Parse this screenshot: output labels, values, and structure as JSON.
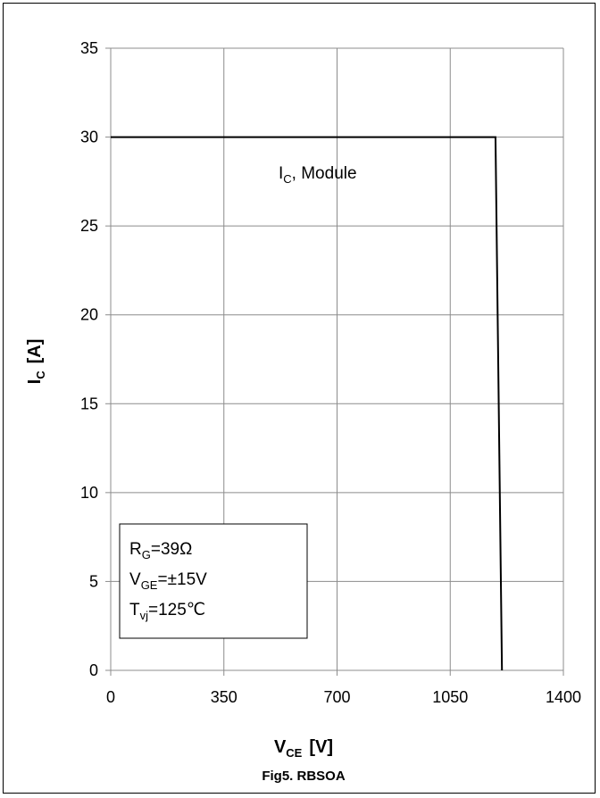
{
  "chart_data": {
    "type": "line",
    "title": "Fig5. RBSOA",
    "xlabel": {
      "main": "V",
      "sub": "CE",
      "unit": "[V]"
    },
    "ylabel": {
      "main": "I",
      "sub": "C",
      "unit": "[A]"
    },
    "xlim": [
      0,
      1400
    ],
    "ylim": [
      0,
      35
    ],
    "xticks": [
      0,
      350,
      700,
      1050,
      1400
    ],
    "yticks": [
      0,
      5,
      10,
      15,
      20,
      25,
      30,
      35
    ],
    "grid": true,
    "series": [
      {
        "name": "IC, Module",
        "label_parts": {
          "main": "I",
          "sub": "C",
          "rest": ", Module"
        },
        "x": [
          0,
          1190,
          1210
        ],
        "y": [
          30,
          30,
          0
        ]
      }
    ],
    "conditions": [
      {
        "main": "R",
        "sub": "G",
        "rest": "=39Ω"
      },
      {
        "main": "V",
        "sub": "GE",
        "rest": "=±15V"
      },
      {
        "main": "T",
        "sub": "vj",
        "rest": "=125℃"
      }
    ]
  }
}
